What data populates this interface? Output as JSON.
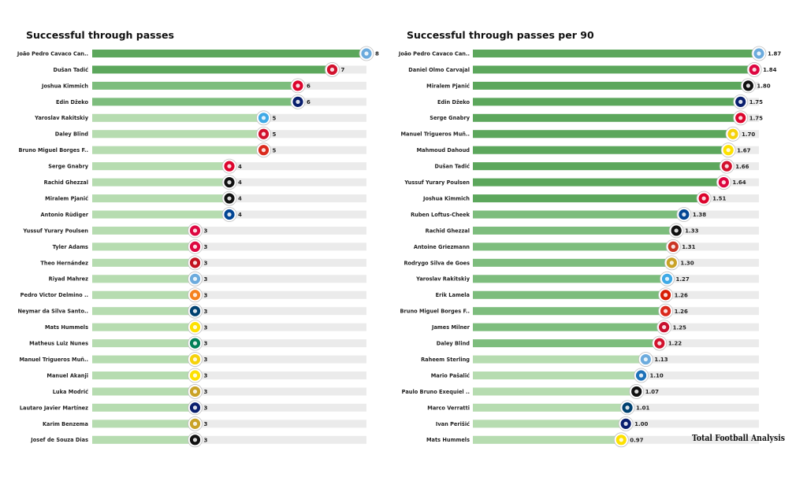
{
  "chart_data": [
    {
      "type": "bar",
      "orientation": "horizontal",
      "title": "Successful through passes",
      "xlim": [
        0,
        8
      ],
      "categories": [
        "João Pedro Cavaco Can..",
        "Dušan Tadić",
        "Joshua Kimmich",
        "Edin Džeko",
        "Yaroslav Rakitskiy",
        "Daley Blind",
        "Bruno Miguel Borges F..",
        "Serge  Gnabry",
        "Rachid Ghezzal",
        "Miralem Pjanić",
        "Antonio Rüdiger",
        "Yussuf Yurary Poulsen",
        "Tyler Adams",
        "Theo Hernández",
        "Riyad Mahrez",
        "Pedro Victor Delmino ..",
        "Neymar da Silva Santo..",
        "Mats  Hummels",
        "Matheus Luiz Nunes",
        "Manuel Trigueros Muñ..",
        "Manuel Akanji",
        "Luka Modrić",
        "Lautaro Javier Martínez",
        "Karim Benzema",
        "Josef de Souza Dias"
      ],
      "values": [
        8,
        7,
        6,
        6,
        5,
        5,
        5,
        4,
        4,
        4,
        4,
        3,
        3,
        3,
        3,
        3,
        3,
        3,
        3,
        3,
        3,
        3,
        3,
        3,
        3
      ],
      "value_labels": [
        "8",
        "7",
        "6",
        "6",
        "5",
        "5",
        "5",
        "4",
        "4",
        "4",
        "4",
        "3",
        "3",
        "3",
        "3",
        "3",
        "3",
        "3",
        "3",
        "3",
        "3",
        "3",
        "3",
        "3",
        "3"
      ],
      "badges": [
        "man-city",
        "ajax",
        "bayern",
        "inter",
        "zenit",
        "ajax",
        "man-united",
        "bayern",
        "besiktas",
        "besiktas",
        "chelsea",
        "leipzig",
        "leipzig",
        "milan",
        "man-city",
        "shakhtar",
        "psg",
        "dortmund",
        "sporting",
        "villarreal",
        "dortmund",
        "real-madrid",
        "inter",
        "real-madrid",
        "besiktas"
      ]
    },
    {
      "type": "bar",
      "orientation": "horizontal",
      "title": "Successful through passes per 90",
      "xlim": [
        0,
        1.87
      ],
      "categories": [
        "João Pedro Cavaco Can..",
        "Daniel Olmo Carvajal",
        "Miralem Pjanić",
        "Edin Džeko",
        "Serge  Gnabry",
        "Manuel Trigueros Muñ..",
        "Mahmoud Dahoud",
        "Dušan Tadić",
        "Yussuf Yurary Poulsen",
        "Joshua Kimmich",
        "Ruben Loftus-Cheek",
        "Rachid Ghezzal",
        "Antoine Griezmann",
        "Rodrygo Silva de Goes",
        "Yaroslav Rakitskiy",
        "Erik Lamela",
        "Bruno Miguel Borges F..",
        "James Milner",
        "Daley Blind",
        "Raheem Sterling",
        "Mario Pašalić",
        "Paulo Bruno Exequiel ..",
        "Marco Verratti",
        "Ivan Perišić",
        "Mats  Hummels"
      ],
      "values": [
        1.87,
        1.84,
        1.8,
        1.75,
        1.75,
        1.7,
        1.67,
        1.66,
        1.64,
        1.51,
        1.38,
        1.33,
        1.31,
        1.3,
        1.27,
        1.26,
        1.26,
        1.25,
        1.22,
        1.13,
        1.1,
        1.07,
        1.01,
        1.0,
        0.97
      ],
      "value_labels": [
        "1.87",
        "1.84",
        "1.80",
        "1.75",
        "1.75",
        "1.70",
        "1.67",
        "1.66",
        "1.64",
        "1.51",
        "1.38",
        "1.33",
        "1.31",
        "1.30",
        "1.27",
        "1.26",
        "1.26",
        "1.25",
        "1.22",
        "1.13",
        "1.10",
        "1.07",
        "1.01",
        "1.00",
        "0.97"
      ],
      "badges": [
        "man-city",
        "leipzig",
        "besiktas",
        "inter",
        "bayern",
        "villarreal",
        "dortmund",
        "ajax",
        "leipzig",
        "bayern",
        "chelsea",
        "besiktas",
        "atletico",
        "real-madrid",
        "zenit",
        "sevilla",
        "man-united",
        "liverpool",
        "ajax",
        "man-city",
        "atalanta",
        "juventus",
        "psg",
        "inter",
        "dortmund"
      ]
    }
  ],
  "palette": {
    "bar_dark": "#5ca75c",
    "bar_mid": "#7dbd7d",
    "bar_light": "#b6dcb0",
    "bar_track": "#ebebeb"
  },
  "badge_colors": {
    "man-city": "#6cabdd",
    "ajax": "#d2122e",
    "bayern": "#dc052d",
    "inter": "#0a1f6e",
    "zenit": "#3fa9e6",
    "man-united": "#da291c",
    "besiktas": "#111111",
    "chelsea": "#034694",
    "leipzig": "#dd0741",
    "milan": "#c1121f",
    "shakhtar": "#f58220",
    "psg": "#004170",
    "dortmund": "#fde100",
    "sporting": "#008057",
    "villarreal": "#f5d20a",
    "real-madrid": "#c9a227",
    "atletico": "#cb3524",
    "sevilla": "#d81e05",
    "liverpool": "#c8102e",
    "atalanta": "#1e71b8",
    "juventus": "#111111"
  },
  "brand": "Total Football Analysis"
}
